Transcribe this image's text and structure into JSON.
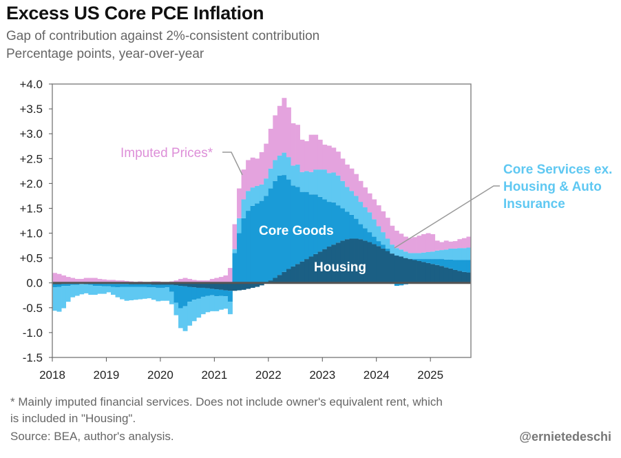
{
  "header": {
    "title": "Excess US Core PCE Inflation",
    "subtitle1": "Gap of contribution against 2%-consistent contribution",
    "subtitle2": "Percentage points, year-over-year"
  },
  "footer": {
    "note1": "* Mainly imputed financial services. Does not include owner's equivalent rent, which",
    "note2": "is included in \"Housing\".",
    "source": "Source: BEA, author's analysis.",
    "handle": "@ernietedeschi"
  },
  "colors": {
    "housing": "#1b5f84",
    "core_goods": "#1a9bd7",
    "core_services": "#5fc8f2",
    "imputed": "#e4a3de",
    "zero_line": "#555555",
    "frame": "#888888"
  },
  "chart_data": {
    "type": "bar",
    "stacked": true,
    "title": "Excess US Core PCE Inflation",
    "ylabel": "Percentage points, year-over-year",
    "ylim": [
      -1.5,
      4.0
    ],
    "y_ticks": [
      "+4.0",
      "+3.5",
      "+3.0",
      "+2.5",
      "+2.0",
      "+1.5",
      "+1.0",
      "+0.5",
      "0.0",
      "-0.5",
      "-1.0",
      "-1.5"
    ],
    "y_tick_values": [
      4.0,
      3.5,
      3.0,
      2.5,
      2.0,
      1.5,
      1.0,
      0.5,
      0.0,
      -0.5,
      -1.0,
      -1.5
    ],
    "x_ticks": [
      "2018",
      "2019",
      "2020",
      "2021",
      "2022",
      "2023",
      "2024",
      "2025"
    ],
    "start": "2018-01",
    "end": "2025-09",
    "annotations": {
      "imputed": "Imputed Prices*",
      "core_goods": "Core Goods",
      "housing": "Housing",
      "core_services_l1": "Core Services ex.",
      "core_services_l2": "Housing & Auto",
      "core_services_l3": "Insurance"
    },
    "series": [
      {
        "name": "Housing",
        "key": "housing",
        "values": [
          -0.03,
          -0.03,
          -0.02,
          -0.02,
          -0.01,
          -0.01,
          0,
          0,
          0,
          -0.01,
          -0.01,
          -0.02,
          -0.02,
          -0.02,
          -0.02,
          -0.02,
          -0.02,
          -0.03,
          -0.03,
          -0.03,
          -0.03,
          -0.03,
          -0.04,
          -0.04,
          -0.04,
          -0.04,
          -0.04,
          -0.05,
          -0.06,
          -0.07,
          -0.08,
          -0.09,
          -0.1,
          -0.1,
          -0.11,
          -0.12,
          -0.13,
          -0.14,
          -0.15,
          -0.16,
          -0.16,
          -0.15,
          -0.14,
          -0.12,
          -0.1,
          -0.08,
          -0.05,
          0,
          0.05,
          0.1,
          0.16,
          0.22,
          0.28,
          0.33,
          0.38,
          0.43,
          0.48,
          0.53,
          0.58,
          0.63,
          0.68,
          0.73,
          0.77,
          0.81,
          0.85,
          0.88,
          0.89,
          0.89,
          0.88,
          0.85,
          0.82,
          0.78,
          0.74,
          0.69,
          0.64,
          0.59,
          0.55,
          0.53,
          0.5,
          0.48,
          0.46,
          0.44,
          0.42,
          0.4,
          0.38,
          0.36,
          0.34,
          0.31,
          0.29,
          0.26,
          0.24,
          0.22,
          0.21
        ]
      },
      {
        "name": "Core Goods",
        "key": "core_goods",
        "values": [
          -0.06,
          -0.05,
          -0.04,
          -0.04,
          -0.03,
          -0.03,
          -0.02,
          -0.03,
          -0.04,
          -0.05,
          -0.05,
          -0.05,
          -0.05,
          -0.06,
          -0.07,
          -0.06,
          -0.06,
          -0.05,
          -0.05,
          -0.05,
          -0.05,
          -0.06,
          -0.05,
          -0.06,
          -0.06,
          -0.05,
          -0.14,
          -0.35,
          -0.45,
          -0.4,
          -0.3,
          -0.25,
          -0.22,
          -0.18,
          -0.15,
          -0.13,
          -0.14,
          -0.12,
          -0.12,
          -0.22,
          0.6,
          1.0,
          1.3,
          1.45,
          1.55,
          1.6,
          1.65,
          1.75,
          1.85,
          1.95,
          2.0,
          1.95,
          1.8,
          1.63,
          1.55,
          1.4,
          1.35,
          1.25,
          1.2,
          1.1,
          1.0,
          0.9,
          0.85,
          0.75,
          0.65,
          0.55,
          0.48,
          0.4,
          0.3,
          0.25,
          0.2,
          0.15,
          0.1,
          0.08,
          0.05,
          -0.02,
          -0.06,
          -0.05,
          -0.03,
          0,
          0.02,
          0.04,
          0.06,
          0.08,
          0.1,
          0.12,
          0.14,
          0.16,
          0.18,
          0.2,
          0.22,
          0.24,
          0.25
        ]
      },
      {
        "name": "Core Services ex. Housing & Auto Insurance",
        "key": "core_services",
        "values": [
          -0.47,
          -0.5,
          -0.45,
          -0.32,
          -0.25,
          -0.22,
          -0.21,
          -0.18,
          -0.2,
          -0.18,
          -0.16,
          -0.15,
          -0.12,
          -0.16,
          -0.2,
          -0.25,
          -0.28,
          -0.27,
          -0.26,
          -0.25,
          -0.24,
          -0.22,
          -0.25,
          -0.27,
          -0.26,
          -0.27,
          -0.25,
          -0.25,
          -0.4,
          -0.5,
          -0.48,
          -0.43,
          -0.38,
          -0.35,
          -0.33,
          -0.32,
          -0.3,
          -0.28,
          -0.25,
          -0.25,
          0.08,
          0.3,
          0.38,
          0.4,
          0.37,
          0.35,
          0.33,
          0.35,
          0.4,
          0.42,
          0.4,
          0.45,
          0.45,
          0.4,
          0.45,
          0.4,
          0.42,
          0.45,
          0.5,
          0.55,
          0.6,
          0.58,
          0.6,
          0.6,
          0.55,
          0.5,
          0.48,
          0.46,
          0.45,
          0.42,
          0.4,
          0.35,
          0.3,
          0.25,
          0.2,
          0.18,
          0.15,
          0.14,
          0.13,
          0.12,
          0.12,
          0.12,
          0.13,
          0.14,
          0.15,
          0.17,
          0.18,
          0.2,
          0.22,
          0.23,
          0.24,
          0.24,
          0.25
        ]
      },
      {
        "name": "Imputed Prices*",
        "key": "imputed",
        "values": [
          0.2,
          0.18,
          0.15,
          0.12,
          0.1,
          0.08,
          0.08,
          0.1,
          0.1,
          0.1,
          0.08,
          0.07,
          0.06,
          0.06,
          0.05,
          0.05,
          0.04,
          0.03,
          0.02,
          0.03,
          0.02,
          0.02,
          0.03,
          0.03,
          0.02,
          0.02,
          0.03,
          0.05,
          0.08,
          0.1,
          0.08,
          0.06,
          0.05,
          0.05,
          0.05,
          0.08,
          0.1,
          0.12,
          0.15,
          0.3,
          0.5,
          0.6,
          0.6,
          0.62,
          0.6,
          0.55,
          0.65,
          0.7,
          0.8,
          0.9,
          1.0,
          1.1,
          1.0,
          0.85,
          0.8,
          0.65,
          0.6,
          0.75,
          0.7,
          0.6,
          0.5,
          0.55,
          0.5,
          0.48,
          0.45,
          0.45,
          0.45,
          0.44,
          0.42,
          0.4,
          0.38,
          0.4,
          0.42,
          0.42,
          0.42,
          0.38,
          0.35,
          0.32,
          0.3,
          0.3,
          0.32,
          0.35,
          0.37,
          0.38,
          0.35,
          0.2,
          0.16,
          0.18,
          0.14,
          0.15,
          0.18,
          0.2,
          0.22
        ]
      }
    ]
  }
}
